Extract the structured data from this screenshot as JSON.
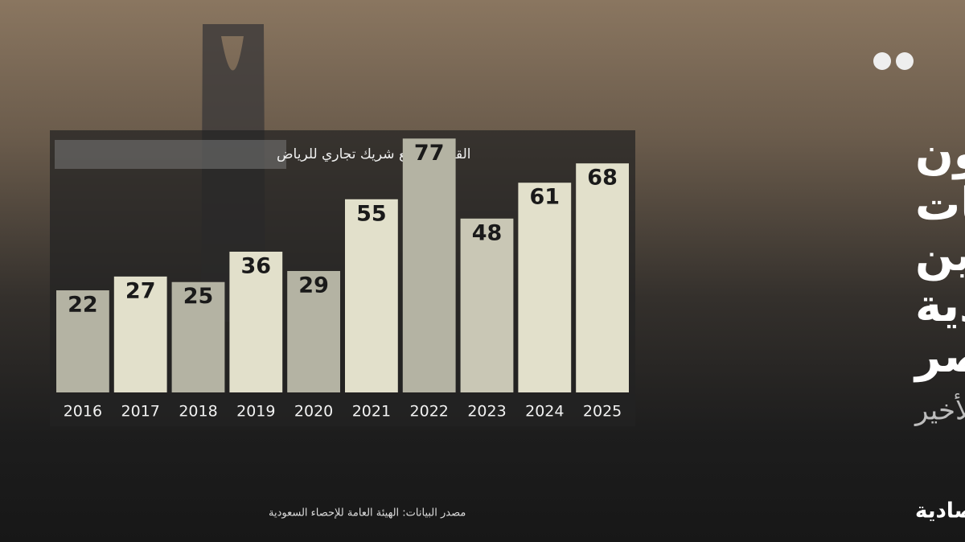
{
  "chart_data": {
    "type": "bar",
    "title": [
      "نصف تريليون",
      "ريال علاقات",
      "تجارية بين",
      "السعودية",
      "ومصر"
    ],
    "subtitle": "في العقد الأخير",
    "caption": "القاهرة سابع شريك تجاري للرياض",
    "source": "مصدر البيانات: الهيئة العامة للإحصاء السعودية",
    "brand": "الاقتصادية",
    "categories": [
      "2016",
      "2017",
      "2018",
      "2019",
      "2020",
      "2021",
      "2022",
      "2023",
      "2024",
      "2025"
    ],
    "values": [
      22,
      27,
      25,
      36,
      29,
      55,
      77,
      48,
      61,
      68
    ],
    "colors": [
      "#b4b3a3",
      "#e2e0cb",
      "#b4b3a3",
      "#e2e0cb",
      "#b4b3a3",
      "#e2e0cb",
      "#b4b3a3",
      "#c9c7b5",
      "#e2e0cb",
      "#e2e0cb"
    ],
    "ylim": [
      -15,
      80
    ]
  }
}
